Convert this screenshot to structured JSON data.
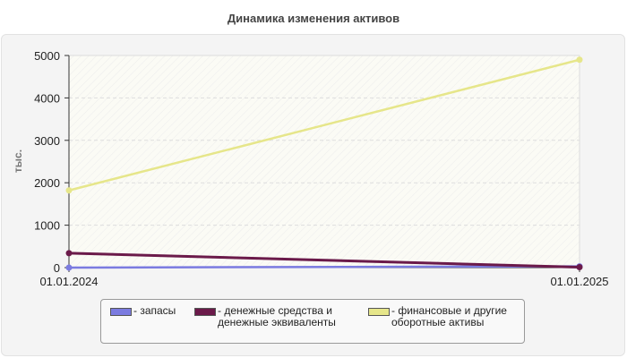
{
  "chart_data": {
    "type": "line",
    "title": "Динамика изменения активов",
    "ylabel": "тыс.",
    "xlabel": "",
    "categories": [
      "01.01.2024",
      "01.01.2025"
    ],
    "ylim": [
      0,
      5000
    ],
    "yticks": [
      "0",
      "1000",
      "2000",
      "3000",
      "4000",
      "5000"
    ],
    "grid": true,
    "legend_position": "bottom",
    "series": [
      {
        "name": "- запасы",
        "values": [
          0,
          30
        ],
        "color": "#7b7be0"
      },
      {
        "name": "- денежные средства и денежные эквиваленты",
        "values": [
          340,
          10
        ],
        "color": "#6b1a4a"
      },
      {
        "name": "- финансовые и другие оборотные активы",
        "values": [
          1820,
          4900
        ],
        "color": "#e6e68a"
      }
    ]
  }
}
